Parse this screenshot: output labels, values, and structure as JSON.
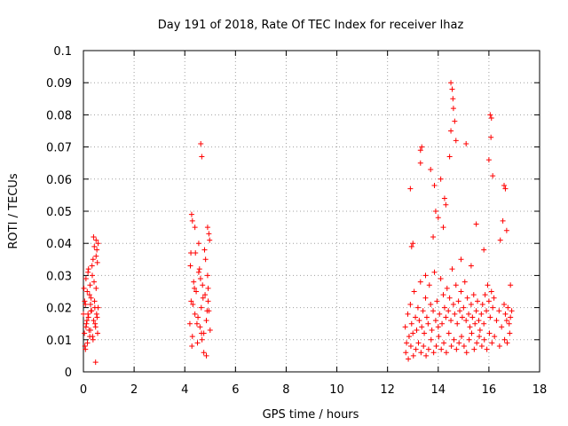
{
  "chart_data": {
    "type": "scatter",
    "title": "Day 191 of 2018, Rate Of TEC Index for receiver lhaz",
    "xlabel": "GPS time / hours",
    "ylabel": "ROTI / TECUs",
    "xlim": [
      0,
      18
    ],
    "ylim": [
      0,
      0.1
    ],
    "xticks": [
      0,
      2,
      4,
      6,
      8,
      10,
      12,
      14,
      16,
      18
    ],
    "yticks": [
      0,
      0.01,
      0.02,
      0.03,
      0.04,
      0.05,
      0.06,
      0.07,
      0.08,
      0.09,
      0.1
    ],
    "xtick_labels": [
      "0",
      "2",
      "4",
      "6",
      "8",
      "10",
      "12",
      "14",
      "16",
      "18"
    ],
    "ytick_labels": [
      "0",
      "0.01",
      "0.02",
      "0.03",
      "0.04",
      "0.05",
      "0.06",
      "0.07",
      "0.08",
      "0.09",
      "0.1"
    ],
    "grid": true,
    "marker": "+",
    "color": "#ff0000",
    "series": [
      {
        "name": "ROTI",
        "x": [
          0.0,
          0.04,
          0.08,
          0.12,
          0.16,
          0.2,
          0.24,
          0.28,
          0.32,
          0.36,
          0.4,
          0.44,
          0.48,
          0.52,
          0.56,
          0.58,
          0.02,
          0.06,
          0.1,
          0.14,
          0.18,
          0.22,
          0.26,
          0.3,
          0.34,
          0.38,
          0.42,
          0.46,
          0.5,
          0.54,
          0.05,
          0.15,
          0.25,
          0.35,
          0.45,
          0.55,
          0.1,
          0.3,
          0.5,
          0.2,
          0.4,
          0.43,
          0.5,
          0.53,
          0.48,
          0.38,
          0.28,
          0.08,
          0.18,
          0.58,
          4.2,
          4.25,
          4.3,
          4.35,
          4.4,
          4.45,
          4.5,
          4.55,
          4.6,
          4.65,
          4.7,
          4.75,
          4.8,
          4.85,
          4.9,
          4.95,
          5.0,
          4.22,
          4.32,
          4.42,
          4.52,
          4.62,
          4.72,
          4.82,
          4.92,
          4.28,
          4.38,
          4.48,
          4.58,
          4.68,
          4.78,
          4.88,
          4.98,
          4.27,
          4.3,
          4.4,
          4.63,
          4.67,
          4.9,
          4.95,
          4.85,
          4.75,
          4.24,
          4.55,
          4.66,
          4.92,
          12.7,
          12.75,
          12.8,
          12.85,
          12.9,
          12.95,
          13.0,
          13.05,
          13.1,
          13.15,
          13.2,
          13.25,
          13.3,
          13.35,
          13.4,
          13.45,
          13.5,
          13.55,
          13.6,
          13.65,
          13.7,
          13.75,
          13.8,
          13.85,
          13.9,
          13.95,
          14.0,
          14.05,
          14.1,
          14.15,
          14.2,
          14.25,
          14.3,
          14.35,
          14.4,
          14.45,
          14.5,
          14.55,
          14.6,
          14.65,
          14.7,
          14.75,
          14.8,
          14.85,
          14.9,
          14.95,
          15.0,
          15.05,
          15.1,
          15.15,
          15.2,
          15.25,
          15.3,
          15.35,
          15.4,
          15.45,
          15.5,
          15.55,
          15.6,
          15.65,
          15.7,
          15.75,
          15.8,
          15.85,
          15.9,
          15.95,
          16.0,
          16.05,
          16.1,
          16.15,
          16.2,
          16.3,
          16.4,
          16.5,
          16.6,
          16.65,
          16.7,
          16.75,
          16.8,
          16.85,
          16.9,
          12.72,
          12.82,
          12.92,
          13.02,
          13.12,
          13.22,
          13.32,
          13.42,
          13.52,
          13.62,
          13.72,
          13.82,
          13.92,
          14.02,
          14.12,
          14.22,
          14.32,
          14.42,
          14.52,
          14.62,
          14.72,
          14.82,
          14.92,
          15.02,
          15.12,
          15.22,
          15.32,
          15.42,
          15.52,
          15.62,
          15.72,
          15.82,
          15.92,
          16.02,
          16.12,
          16.22,
          16.42,
          16.62,
          16.72,
          16.82,
          12.9,
          13.0,
          13.3,
          13.35,
          13.3,
          13.7,
          13.85,
          14.0,
          14.1,
          14.3,
          14.5,
          14.55,
          14.58,
          14.6,
          14.65,
          14.7,
          14.5,
          14.45,
          15.1,
          16.05,
          16.1,
          16.08,
          16.0,
          16.15,
          16.6,
          16.65,
          16.55,
          15.5,
          15.8,
          14.25,
          13.9,
          14.2,
          13.8,
          12.95,
          16.7,
          16.85,
          16.45,
          14.9,
          15.3,
          13.5
        ],
        "y": [
          0.018,
          0.012,
          0.021,
          0.015,
          0.009,
          0.017,
          0.024,
          0.013,
          0.019,
          0.011,
          0.016,
          0.022,
          0.014,
          0.018,
          0.012,
          0.02,
          0.026,
          0.008,
          0.029,
          0.016,
          0.031,
          0.013,
          0.027,
          0.019,
          0.033,
          0.01,
          0.028,
          0.015,
          0.036,
          0.017,
          0.022,
          0.025,
          0.011,
          0.03,
          0.02,
          0.034,
          0.014,
          0.023,
          0.026,
          0.032,
          0.042,
          0.039,
          0.041,
          0.038,
          0.003,
          0.035,
          0.021,
          0.007,
          0.018,
          0.04,
          0.015,
          0.022,
          0.011,
          0.028,
          0.018,
          0.025,
          0.009,
          0.031,
          0.014,
          0.02,
          0.027,
          0.012,
          0.024,
          0.016,
          0.03,
          0.019,
          0.013,
          0.033,
          0.021,
          0.037,
          0.017,
          0.029,
          0.023,
          0.035,
          0.026,
          0.008,
          0.026,
          0.015,
          0.032,
          0.01,
          0.038,
          0.019,
          0.041,
          0.049,
          0.047,
          0.045,
          0.071,
          0.067,
          0.045,
          0.043,
          0.005,
          0.006,
          0.037,
          0.04,
          0.012,
          0.022,
          0.014,
          0.009,
          0.018,
          0.011,
          0.021,
          0.015,
          0.012,
          0.025,
          0.017,
          0.013,
          0.02,
          0.016,
          0.028,
          0.014,
          0.019,
          0.012,
          0.023,
          0.017,
          0.015,
          0.027,
          0.021,
          0.013,
          0.019,
          0.031,
          0.016,
          0.022,
          0.014,
          0.018,
          0.029,
          0.015,
          0.024,
          0.02,
          0.017,
          0.026,
          0.019,
          0.023,
          0.016,
          0.032,
          0.021,
          0.018,
          0.027,
          0.015,
          0.022,
          0.019,
          0.025,
          0.017,
          0.02,
          0.028,
          0.016,
          0.023,
          0.018,
          0.014,
          0.021,
          0.017,
          0.024,
          0.015,
          0.019,
          0.022,
          0.016,
          0.013,
          0.018,
          0.021,
          0.015,
          0.024,
          0.019,
          0.027,
          0.022,
          0.017,
          0.025,
          0.02,
          0.023,
          0.016,
          0.019,
          0.014,
          0.021,
          0.018,
          0.016,
          0.02,
          0.015,
          0.017,
          0.019,
          0.006,
          0.004,
          0.008,
          0.005,
          0.007,
          0.009,
          0.006,
          0.008,
          0.005,
          0.007,
          0.01,
          0.006,
          0.008,
          0.011,
          0.007,
          0.009,
          0.006,
          0.012,
          0.008,
          0.01,
          0.007,
          0.009,
          0.011,
          0.008,
          0.006,
          0.01,
          0.012,
          0.007,
          0.009,
          0.011,
          0.008,
          0.01,
          0.007,
          0.012,
          0.009,
          0.011,
          0.008,
          0.01,
          0.009,
          0.012,
          0.057,
          0.04,
          0.069,
          0.07,
          0.065,
          0.063,
          0.058,
          0.048,
          0.06,
          0.052,
          0.09,
          0.088,
          0.085,
          0.082,
          0.078,
          0.072,
          0.075,
          0.067,
          0.071,
          0.08,
          0.079,
          0.073,
          0.066,
          0.061,
          0.058,
          0.057,
          0.047,
          0.046,
          0.038,
          0.054,
          0.05,
          0.045,
          0.042,
          0.039,
          0.044,
          0.027,
          0.041,
          0.035,
          0.033,
          0.03
        ]
      }
    ]
  }
}
